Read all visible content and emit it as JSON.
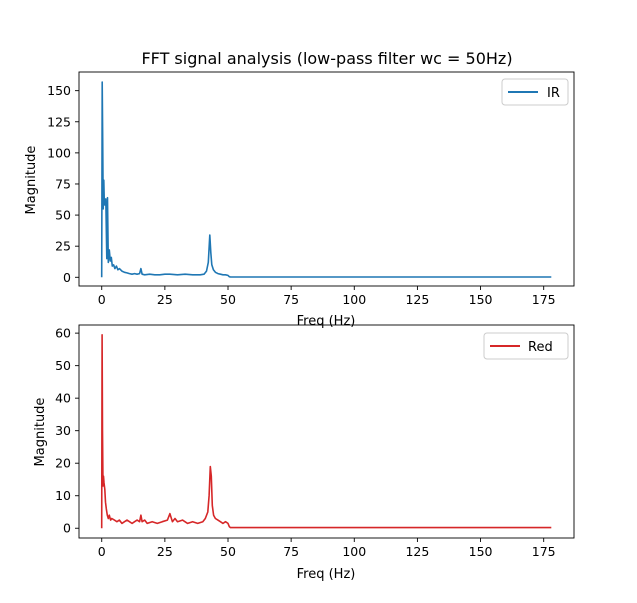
{
  "title": "FFT signal analysis (low-pass filter wc = 50Hz)",
  "chart_data": [
    {
      "type": "line",
      "xlabel": "Freq (Hz)",
      "ylabel": "Magnitude",
      "xlim": [
        -9,
        187
      ],
      "ylim": [
        -7,
        165
      ],
      "xticks": [
        0,
        25,
        50,
        75,
        100,
        125,
        150,
        175
      ],
      "yticks": [
        0,
        25,
        50,
        75,
        100,
        125,
        150
      ],
      "grid": false,
      "legend_position": "top-right",
      "color": "#1f77b4",
      "series": [
        {
          "name": "IR",
          "x": [
            0,
            0.2,
            0.4,
            0.6,
            0.8,
            1.0,
            1.3,
            1.6,
            2.0,
            2.3,
            2.6,
            3.0,
            3.4,
            3.8,
            4.2,
            4.7,
            5.2,
            5.8,
            6.4,
            7.0,
            8.0,
            9.0,
            10,
            11,
            12,
            13,
            14,
            15,
            15.5,
            16,
            17,
            19,
            21,
            23,
            25,
            27,
            30,
            33,
            36,
            39,
            40.5,
            41.5,
            42.2,
            42.8,
            43.2,
            43.6,
            44.2,
            45,
            46,
            47,
            48,
            49,
            50,
            50.5,
            51,
            60,
            80,
            100,
            120,
            140,
            160,
            178
          ],
          "values": [
            0,
            157,
            110,
            55,
            78,
            60,
            58,
            63,
            15,
            64,
            12,
            22,
            13,
            16,
            9,
            10,
            7,
            9,
            6,
            7,
            5,
            4,
            3.5,
            3,
            2.5,
            3,
            2.5,
            3,
            7,
            2.5,
            2,
            2.5,
            2,
            2,
            2.5,
            2.5,
            2,
            2.5,
            2,
            2,
            2.5,
            5,
            12,
            34,
            20,
            10,
            6,
            4,
            3,
            2.5,
            2,
            2,
            1.5,
            0.5,
            0.2,
            0.2,
            0.2,
            0.2,
            0.2,
            0.2,
            0.2,
            0.2
          ]
        }
      ]
    },
    {
      "type": "line",
      "xlabel": "Freq (Hz)",
      "ylabel": "Magnitude",
      "xlim": [
        -9,
        187
      ],
      "ylim": [
        -3,
        62.5
      ],
      "xticks": [
        0,
        25,
        50,
        75,
        100,
        125,
        150,
        175
      ],
      "yticks": [
        0,
        10,
        20,
        30,
        40,
        50,
        60
      ],
      "grid": false,
      "legend_position": "top-right",
      "color": "#d62728",
      "series": [
        {
          "name": "Red",
          "x": [
            0,
            0.15,
            0.3,
            0.5,
            0.7,
            0.9,
            1.2,
            1.5,
            1.8,
            2.2,
            2.6,
            3.0,
            3.5,
            4,
            5,
            6,
            7,
            8,
            9,
            10,
            11,
            12,
            13,
            14,
            15,
            15.5,
            16,
            17,
            18,
            20,
            22,
            24,
            26,
            27,
            28,
            29,
            30,
            32,
            34,
            36,
            38,
            40,
            41,
            42,
            42.5,
            43,
            43.4,
            43.8,
            44.3,
            45,
            46,
            47,
            48,
            49,
            50,
            50.5,
            51,
            60,
            80,
            100,
            120,
            140,
            160,
            178
          ],
          "values": [
            0,
            59.5,
            30,
            13,
            16,
            14,
            12,
            8,
            6,
            4,
            3,
            4,
            2.5,
            3,
            2.5,
            2,
            2.5,
            1.5,
            2,
            2.5,
            2,
            1.5,
            2,
            2.5,
            2,
            4,
            2,
            2.5,
            1.5,
            2,
            1.5,
            2,
            2.5,
            4.5,
            2,
            3,
            2,
            2.5,
            1.5,
            2,
            1.5,
            2,
            3,
            5,
            10,
            19,
            16,
            7,
            4,
            3,
            2.5,
            2,
            1.5,
            2,
            1.5,
            0.5,
            0.2,
            0.2,
            0.2,
            0.2,
            0.2,
            0.2,
            0.2,
            0.2
          ]
        }
      ]
    }
  ]
}
